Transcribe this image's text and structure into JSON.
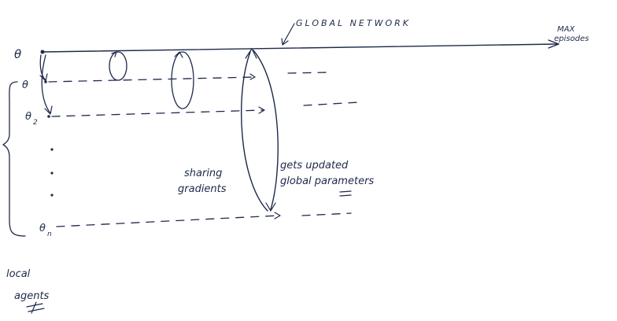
{
  "global": {
    "theta": "θ",
    "network_label": "GLOBAL NETWORK",
    "max_label_1": "MAX",
    "max_label_2": "episodes"
  },
  "agents": [
    {
      "symbol": "θ",
      "subscript": ""
    },
    {
      "symbol": "θ",
      "subscript": "2"
    },
    {
      "symbol": "θ",
      "subscript": "n"
    }
  ],
  "annotations": {
    "sharing_1": "sharing",
    "sharing_2": "gradients",
    "gets_1": "gets updated",
    "gets_2": "global parameters",
    "local_1": "local",
    "local_2": "agents"
  },
  "ink_color": "#1f2a4a"
}
